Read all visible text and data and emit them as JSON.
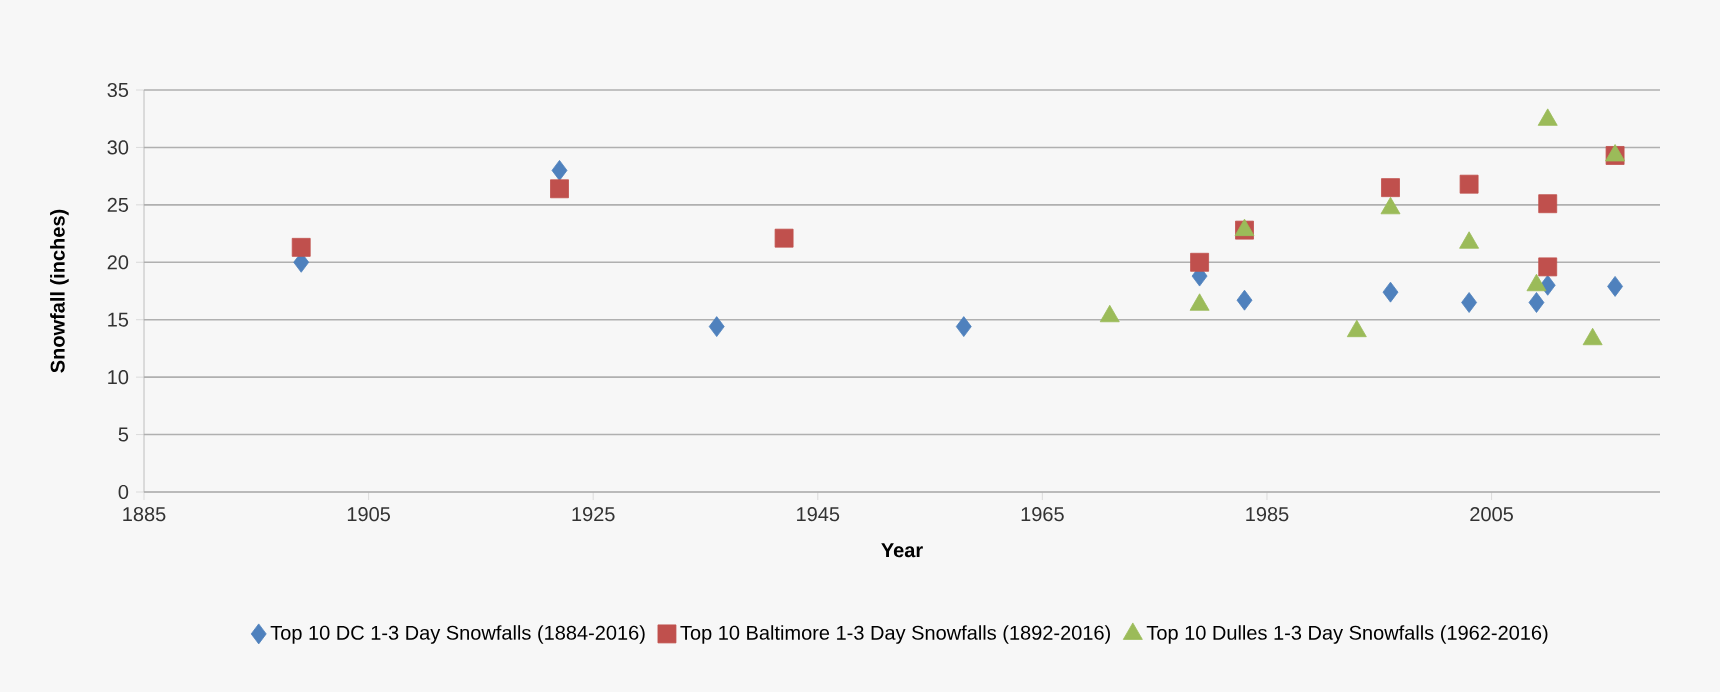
{
  "chart_data": {
    "type": "scatter",
    "xlabel": "Year",
    "ylabel": "Snowfall (inches)",
    "xlim": [
      1885,
      2020
    ],
    "xticks": [
      1885,
      1905,
      1925,
      1945,
      1965,
      1985,
      2005
    ],
    "ylim": [
      0,
      35
    ],
    "yticks": [
      0,
      5,
      10,
      15,
      20,
      25,
      30,
      35
    ],
    "grid": "y",
    "legend": "bottom",
    "series": [
      {
        "name": "Top 10 DC 1-3 Day Snowfalls (1884-2016)",
        "color": "#4f81bd",
        "marker": "diamond",
        "x": [
          1899,
          1922,
          1936,
          1958,
          1979,
          1983,
          1996,
          2003,
          2009,
          2010,
          2016
        ],
        "values": [
          20.0,
          28.0,
          14.4,
          14.4,
          18.8,
          16.7,
          17.4,
          16.5,
          16.5,
          18.0,
          17.9
        ]
      },
      {
        "name": "Top 10 Baltimore 1-3 Day Snowfalls (1892-2016)",
        "color": "#c0504d",
        "marker": "square",
        "x": [
          1899,
          1922,
          1942,
          1979,
          1983,
          1996,
          2003,
          2010,
          2010,
          2016
        ],
        "values": [
          21.3,
          26.4,
          22.1,
          20.0,
          22.8,
          26.5,
          26.8,
          25.1,
          19.6,
          29.3
        ]
      },
      {
        "name": "Top 10 Dulles 1-3 Day Snowfalls (1962-2016)",
        "color": "#9bbb59",
        "marker": "triangle",
        "x": [
          1971,
          1979,
          1983,
          1993,
          1996,
          2003,
          2009,
          2010,
          2014,
          2016
        ],
        "values": [
          15.3,
          16.3,
          22.8,
          14.0,
          24.7,
          21.7,
          18.0,
          32.4,
          13.3,
          29.3
        ]
      }
    ]
  }
}
